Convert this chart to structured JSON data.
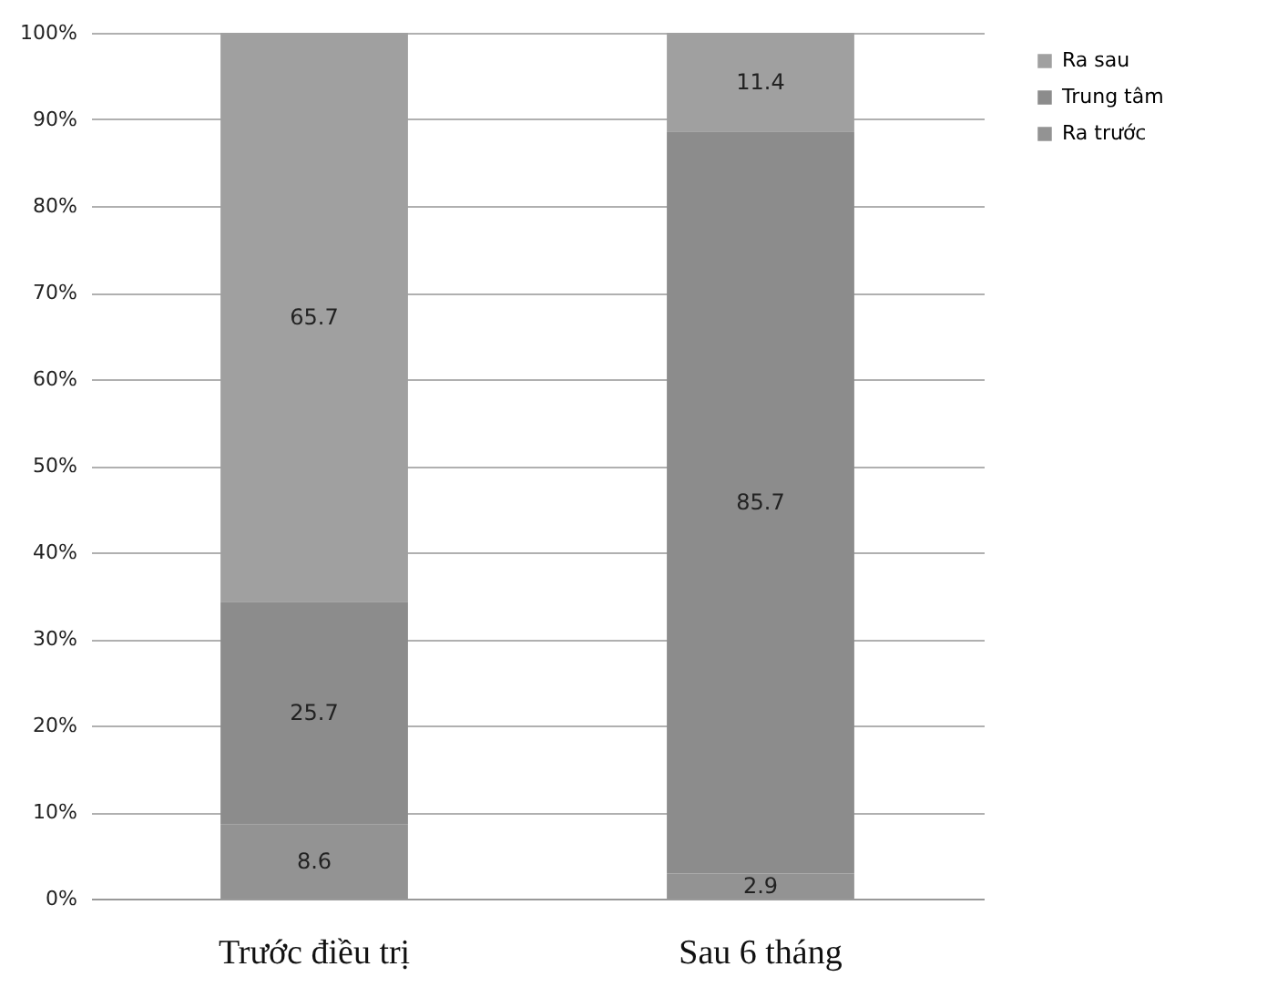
{
  "chart_data": {
    "type": "bar",
    "stacked": true,
    "data_labels": true,
    "grid": "y",
    "legend": "right",
    "categories": [
      "Trước điều trị",
      "Sau 6 tháng"
    ],
    "series": [
      {
        "name": "Ra trước",
        "color": "#939393",
        "values": [
          8.6,
          2.9
        ]
      },
      {
        "name": "Trung tâm",
        "color": "#8c8c8c",
        "values": [
          25.7,
          85.7
        ]
      },
      {
        "name": "Ra sau",
        "color": "#a0a0a0",
        "values": [
          65.7,
          11.4
        ]
      }
    ],
    "ylim": [
      0,
      100
    ],
    "yticks": [
      {
        "value": 0,
        "label": "0%"
      },
      {
        "value": 10,
        "label": "10%"
      },
      {
        "value": 20,
        "label": "20%"
      },
      {
        "value": 30,
        "label": "30%"
      },
      {
        "value": 40,
        "label": "40%"
      },
      {
        "value": 50,
        "label": "50%"
      },
      {
        "value": 60,
        "label": "60%"
      },
      {
        "value": 70,
        "label": "70%"
      },
      {
        "value": 80,
        "label": "80%"
      },
      {
        "value": 90,
        "label": "90%"
      },
      {
        "value": 100,
        "label": "100%"
      }
    ]
  }
}
